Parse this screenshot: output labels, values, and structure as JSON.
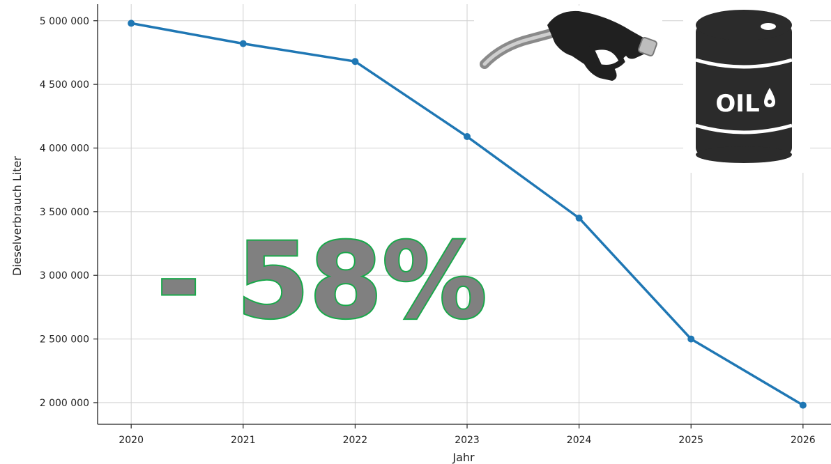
{
  "chart_data": {
    "type": "line",
    "title": "",
    "xlabel": "Jahr",
    "ylabel": "Dieselverbrauch Liter",
    "x": [
      2020,
      2021,
      2022,
      2023,
      2024,
      2025,
      2026
    ],
    "series": [
      {
        "values": [
          4980000,
          4820000,
          4680000,
          4090000,
          3450000,
          2500000,
          1980000
        ],
        "color": "#1f77b4"
      }
    ],
    "xlim": [
      2019.7,
      2026.25
    ],
    "ylim": [
      1830000,
      5130000
    ],
    "yticks": [
      2000000,
      2500000,
      3000000,
      3500000,
      4000000,
      4500000,
      5000000
    ],
    "ytick_labels": [
      "2 000 000",
      "2 500 000",
      "3 000 000",
      "3 500 000",
      "4 000 000",
      "4 500 000",
      "5 000 000"
    ],
    "xtick_labels": [
      "2020",
      "2021",
      "2022",
      "2023",
      "2024",
      "2025",
      "2026"
    ],
    "grid": true,
    "annotation": "- 58%",
    "annotation_color": "#808080",
    "annotation_outline": "#19a84a"
  },
  "images": {
    "pump": {
      "name": "fuel-pump-nozzle-icon"
    },
    "barrel": {
      "name": "oil-barrel-icon",
      "label": "OIL"
    }
  }
}
